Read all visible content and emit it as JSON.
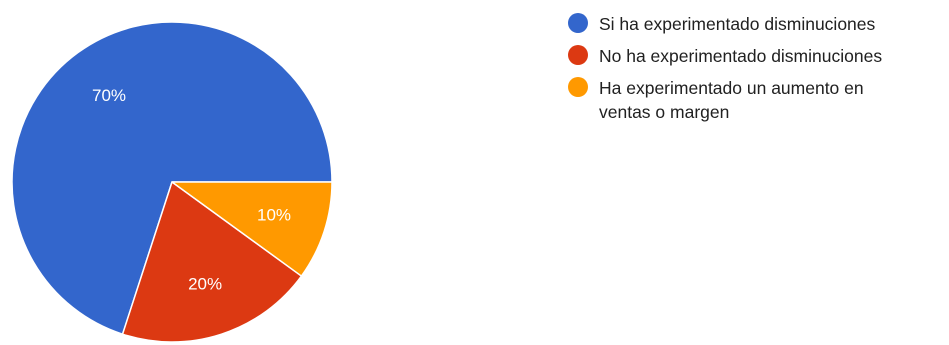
{
  "chart_data": {
    "type": "pie",
    "title": "",
    "start_angle_deg": 0,
    "direction": "counterclockwise",
    "slices": [
      {
        "name": "Si ha experimentado disminuciones",
        "value": 70,
        "label": "70%",
        "color": "#3366cc"
      },
      {
        "name": "No ha experimentado disminuciones",
        "value": 20,
        "label": "20%",
        "color": "#dc3912"
      },
      {
        "name": "Ha experimentado un aumento en ventas o margen",
        "value": 10,
        "label": "10%",
        "color": "#ff9900"
      }
    ],
    "legend_position": "right"
  }
}
